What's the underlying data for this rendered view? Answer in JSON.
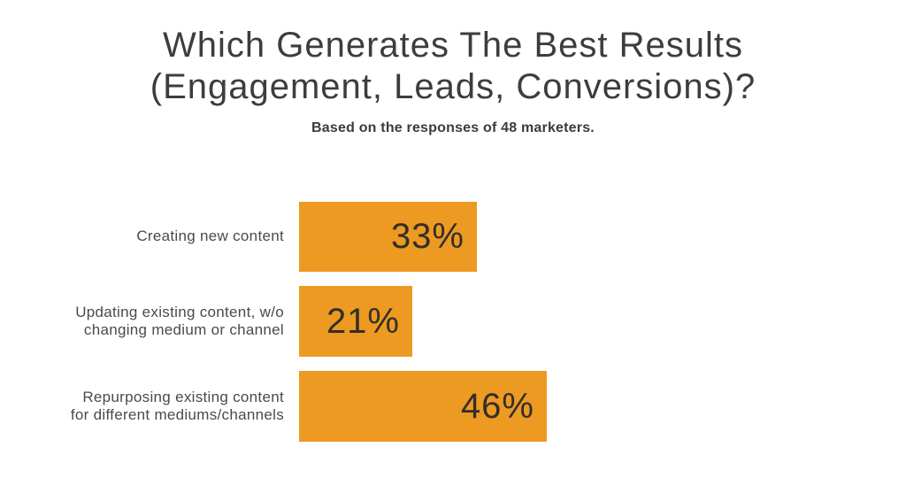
{
  "header": {
    "title": "Which Generates The Best Results\n(Engagement, Leads, Conversions)?",
    "subtitle": "Based on the responses of 48 marketers."
  },
  "colors": {
    "bar": "#EC9A21",
    "title_text": "#3D3D3D",
    "label_text": "#4A4A4A",
    "value_text": "#332E29",
    "background": "#FFFFFF"
  },
  "chart_data": {
    "type": "bar",
    "orientation": "horizontal",
    "title": "Which Generates The Best Results (Engagement, Leads, Conversions)?",
    "subtitle": "Based on the responses of 48 marketers.",
    "unit": "%",
    "xlim": [
      0,
      50
    ],
    "grid": false,
    "legend": false,
    "bar_color": "#EC9A21",
    "categories": [
      "Creating new content",
      "Updating existing content, w/o changing medium or channel",
      "Repurposing existing content for different mediums/channels"
    ],
    "values": [
      33,
      21,
      46
    ],
    "rows": [
      {
        "label_display": "Creating new content",
        "value": 33,
        "value_label": "33%"
      },
      {
        "label_display": "Updating existing content, w/o\nchanging medium or channel",
        "value": 21,
        "value_label": "21%"
      },
      {
        "label_display": "Repurposing existing content\nfor different mediums/channels",
        "value": 46,
        "value_label": "46%"
      }
    ]
  }
}
